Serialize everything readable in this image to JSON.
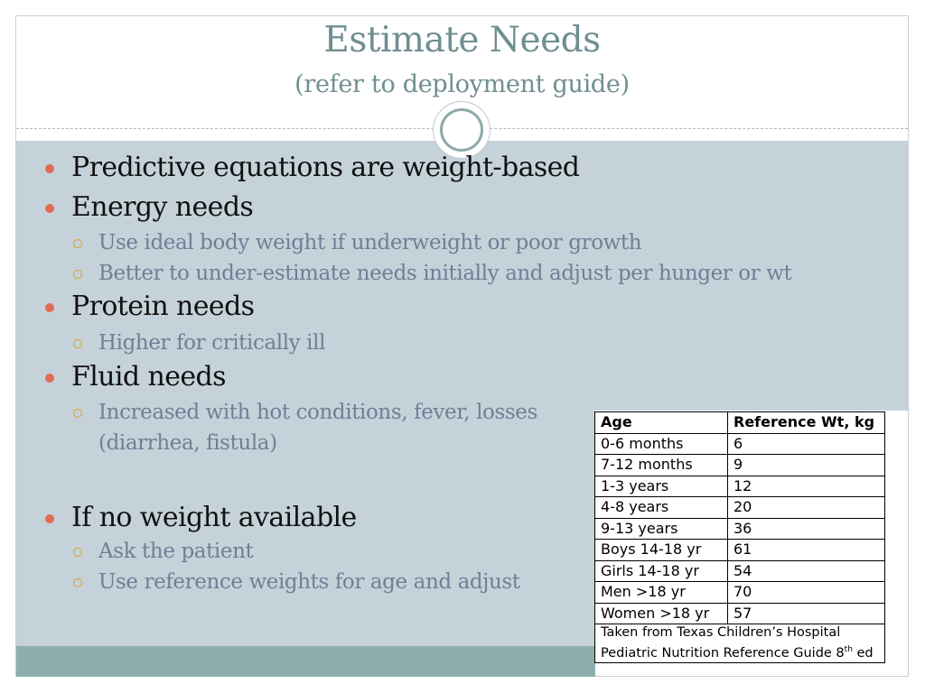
{
  "slide": {
    "title": "Estimate Needs",
    "subtitle": "(refer to deployment guide)"
  },
  "bullets": [
    {
      "level": 1,
      "text": "Predictive equations are weight-based"
    },
    {
      "level": 1,
      "text": "Energy needs"
    },
    {
      "level": 2,
      "text": "Use ideal body weight if underweight or poor growth"
    },
    {
      "level": 2,
      "text": "Better to under-estimate needs initially and adjust per hunger or wt"
    },
    {
      "level": 1,
      "text": "Protein needs"
    },
    {
      "level": 2,
      "text": "Higher for critically ill"
    },
    {
      "level": 1,
      "text": "Fluid needs"
    },
    {
      "level": 2,
      "text": "Increased with hot conditions, fever, losses"
    },
    {
      "level": 2,
      "text": "(diarrhea, fistula)"
    },
    {
      "level": 1,
      "text": "If no weight available"
    },
    {
      "level": 2,
      "text": "Ask the patient"
    },
    {
      "level": 2,
      "text": "Use reference weights for age and adjust"
    }
  ],
  "table": {
    "headers": [
      "Age",
      "Reference Wt, kg"
    ],
    "rows": [
      [
        "0-6 months",
        "6"
      ],
      [
        "7-12 months",
        "9"
      ],
      [
        "1-3 years",
        "12"
      ],
      [
        "4-8 years",
        "20"
      ],
      [
        "9-13 years",
        "36"
      ],
      [
        "Boys 14-18 yr",
        "61"
      ],
      [
        "Girls 14-18 yr",
        "54"
      ],
      [
        "Men >18 yr",
        "70"
      ],
      [
        "Women >18 yr",
        "57"
      ]
    ],
    "note_line1": "Taken from Texas Children’s Hospital",
    "note_line2": "Pediatric Nutrition Reference Guide 8",
    "note_sup": "th",
    "note_end": " ed"
  },
  "colors": {
    "title": "#6f8f91",
    "panel": "#c5d2d9",
    "footer": "#8eaeae",
    "bullet_level1": "#e06c53",
    "bullet_level2": "#e0a020",
    "sub_text": "#6f7f96"
  }
}
